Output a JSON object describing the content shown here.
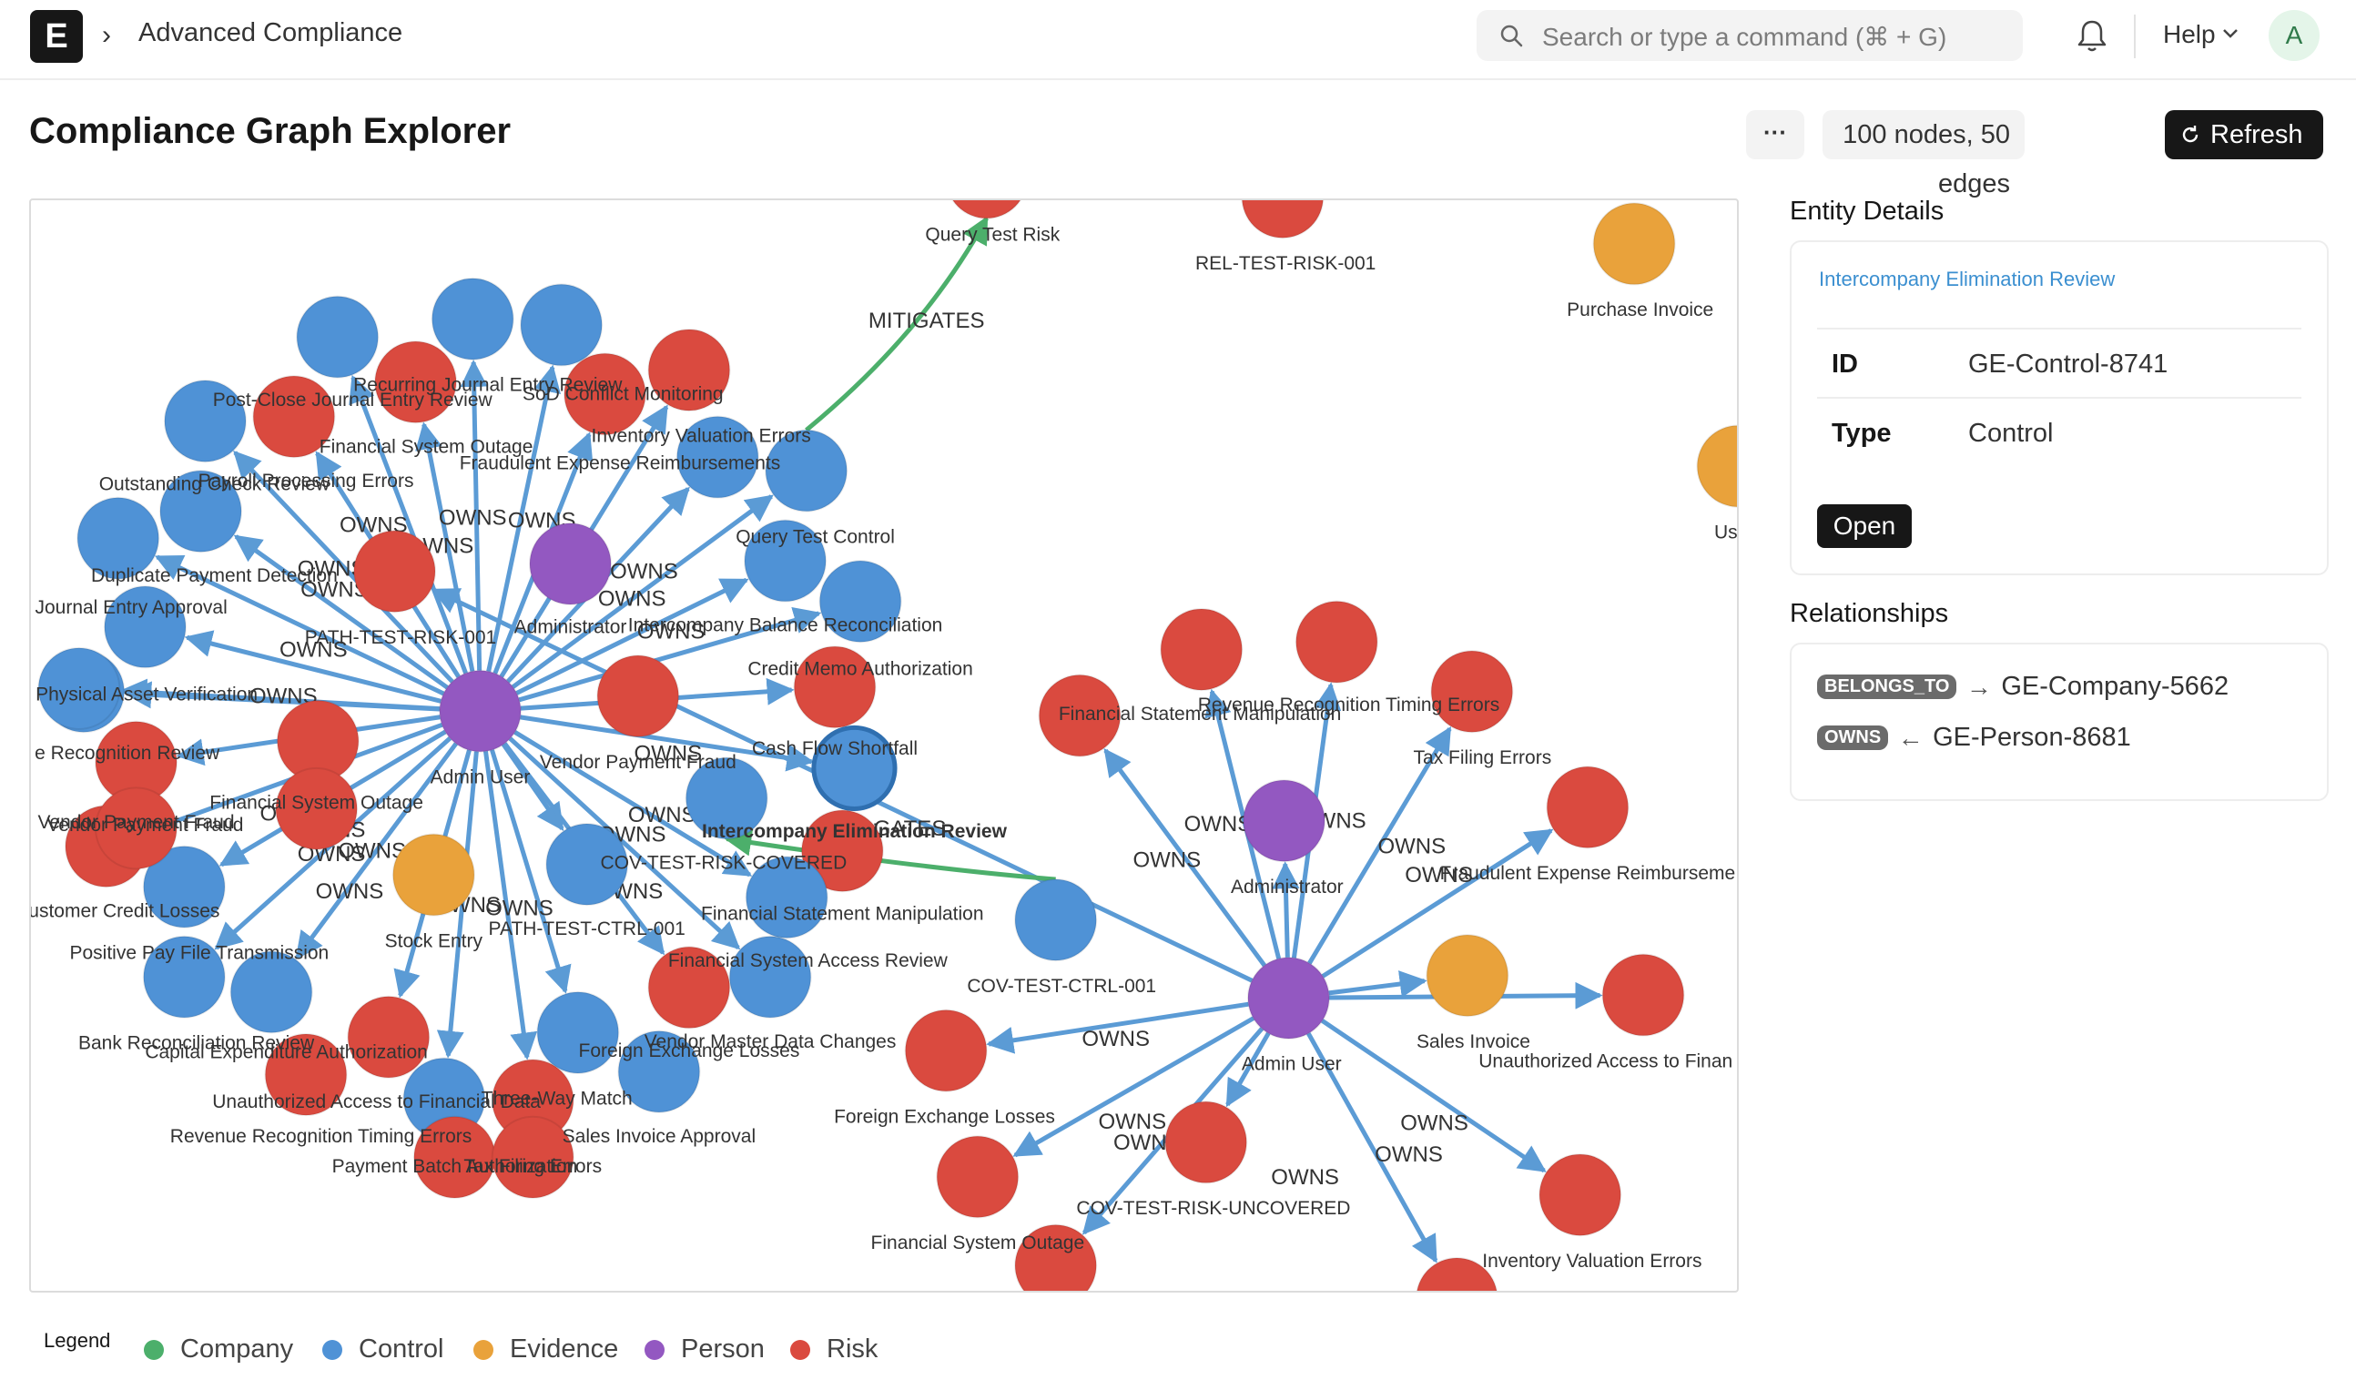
{
  "header": {
    "logo_letter": "E",
    "breadcrumb_separator": "›",
    "breadcrumb": "Advanced Compliance",
    "search_placeholder": "Search or type a command (⌘ + G)",
    "help_label": "Help",
    "avatar_initial": "A"
  },
  "page": {
    "title": "Compliance Graph Explorer",
    "more_label": "···",
    "graph_stats": "100 nodes, 50 edges",
    "refresh_label": "Refresh"
  },
  "colors": {
    "Company": "#4caf6b",
    "Control": "#4f92d6",
    "Evidence": "#e9a23b",
    "Person": "#9358c1",
    "Risk": "#da4a3f",
    "edge": "#5b9bd5",
    "mitigates_edge": "#4caf6b"
  },
  "graph": {
    "nodes": [
      {
        "id": "n1",
        "type": "Person",
        "label": "Admin User"
      },
      {
        "id": "n2",
        "type": "Person",
        "label": "Administrator"
      },
      {
        "id": "n3",
        "type": "Person",
        "label": "Admin User"
      },
      {
        "id": "n4",
        "type": "Person",
        "label": "Administrator"
      },
      {
        "id": "n5",
        "type": "Risk",
        "label": "Query Test Risk"
      },
      {
        "id": "n6",
        "type": "Risk",
        "label": "REL-TEST-RISK-001"
      },
      {
        "id": "n7",
        "type": "Evidence",
        "label": "Purchase Invoice"
      },
      {
        "id": "n8",
        "type": "Evidence",
        "label": "Us"
      },
      {
        "id": "n9",
        "type": "Control",
        "label": "Post-Close Journal Entry Review"
      },
      {
        "id": "n10",
        "type": "Control",
        "label": ""
      },
      {
        "id": "n11",
        "type": "Control",
        "label": ""
      },
      {
        "id": "n12",
        "type": "Control",
        "label": ""
      },
      {
        "id": "n13",
        "type": "Risk",
        "label": "Recurring Journal Entry Review"
      },
      {
        "id": "n14",
        "type": "Risk",
        "label": "SoD Conflict Monitoring"
      },
      {
        "id": "n15",
        "type": "Risk",
        "label": "Financial System Outage"
      },
      {
        "id": "n16",
        "type": "Risk",
        "label": "Inventory Valuation Errors"
      },
      {
        "id": "n17",
        "type": "Control",
        "label": "Fraudulent Expense Reimbursements"
      },
      {
        "id": "n18",
        "type": "Control",
        "label": ""
      },
      {
        "id": "n19",
        "type": "Control",
        "label": "Payroll Processing Errors"
      },
      {
        "id": "n20",
        "type": "Control",
        "label": "Outstanding Check Review"
      },
      {
        "id": "n21",
        "type": "Control",
        "label": "Duplicate Payment Detection"
      },
      {
        "id": "n22",
        "type": "Risk",
        "label": "PATH-TEST-RISK-001"
      },
      {
        "id": "n23",
        "type": "Control",
        "label": "Query Test Control"
      },
      {
        "id": "n24",
        "type": "Control",
        "label": "Intercompany Balance Reconciliation"
      },
      {
        "id": "n25",
        "type": "Control",
        "label": "al Journal Entry Approval"
      },
      {
        "id": "n26",
        "type": "Control",
        "label": "Physical Asset Verification"
      },
      {
        "id": "n27",
        "type": "Risk",
        "label": "Vendor Payment Fraud"
      },
      {
        "id": "n28",
        "type": "Risk",
        "label": "Credit Memo Authorization"
      },
      {
        "id": "n29",
        "type": "Risk",
        "label": "e Recognition Review"
      },
      {
        "id": "n30",
        "type": "Risk",
        "label": ""
      },
      {
        "id": "n31",
        "type": "Control",
        "label": "Cash Flow Shortfall"
      },
      {
        "id": "n32",
        "type": "Risk",
        "label": "Vendor Payment Fraud"
      },
      {
        "id": "n33",
        "type": "Control",
        "label": "Intercompany Elimination Review"
      },
      {
        "id": "n34",
        "type": "Control",
        "label": "ustomer Credit Losses"
      },
      {
        "id": "n35",
        "type": "Evidence",
        "label": "Stock Entry"
      },
      {
        "id": "n36",
        "type": "Control",
        "label": "PATH-TEST-CTRL-001"
      },
      {
        "id": "n37",
        "type": "Risk",
        "label": "COV-TEST-RISK-COVERED"
      },
      {
        "id": "n38",
        "type": "Control",
        "label": "Financial Statement Manipulation"
      },
      {
        "id": "n39",
        "type": "Control",
        "label": "Positive Pay File Transmission"
      },
      {
        "id": "n40",
        "type": "Control",
        "label": "Bank Reconciliation Review"
      },
      {
        "id": "n41",
        "type": "Risk",
        "label": "Capital Expenditure Authorization"
      },
      {
        "id": "n42",
        "type": "Risk",
        "label": "Revenue Recognition Timing Errors"
      },
      {
        "id": "n43",
        "type": "Control",
        "label": "Unauthorized Access to Financial Data"
      },
      {
        "id": "n44",
        "type": "Risk",
        "label": "Three-Way Match"
      },
      {
        "id": "n45",
        "type": "Control",
        "label": "Foreign Exchange Losses"
      },
      {
        "id": "n46",
        "type": "Control",
        "label": "Sales Invoice Approval"
      },
      {
        "id": "n47",
        "type": "Risk",
        "label": "Financial System Access Review"
      },
      {
        "id": "n48",
        "type": "Control",
        "label": "Vendor Master Data Changes"
      },
      {
        "id": "n49",
        "type": "Control",
        "label": "COV-TEST-CTRL-001"
      },
      {
        "id": "n50",
        "type": "Risk",
        "label": "Financial Statement Manipulation"
      },
      {
        "id": "n51",
        "type": "Risk",
        "label": ""
      },
      {
        "id": "n52",
        "type": "Risk",
        "label": "Revenue Recognition Timing Errors"
      },
      {
        "id": "n53",
        "type": "Risk",
        "label": "Tax Filing Errors"
      },
      {
        "id": "n54",
        "type": "Risk",
        "label": "Fraudulent Expense Reimburseme"
      },
      {
        "id": "n55",
        "type": "Evidence",
        "label": "Sales Invoice"
      },
      {
        "id": "n56",
        "type": "Risk",
        "label": "Unauthorized Access to Finan"
      },
      {
        "id": "n57",
        "type": "Risk",
        "label": "Foreign Exchange Losses"
      },
      {
        "id": "n58",
        "type": "Risk",
        "label": "Financial System Outage"
      },
      {
        "id": "n59",
        "type": "Risk",
        "label": "COV-TEST-RISK-UNCOVERED"
      },
      {
        "id": "n60",
        "type": "Risk",
        "label": "Inventory Valuation Errors"
      },
      {
        "id": "n61",
        "type": "Risk",
        "label": ""
      },
      {
        "id": "n62",
        "type": "Risk",
        "label": ""
      },
      {
        "id": "n63",
        "type": "Risk",
        "label": "Payment Batch Authorization"
      },
      {
        "id": "n64",
        "type": "Risk",
        "label": "Tax Filing Errors"
      },
      {
        "id": "n65",
        "type": "Risk",
        "label": "Vendor Payment Fraud"
      },
      {
        "id": "n66",
        "type": "Risk",
        "label": "Financial System Outage"
      }
    ],
    "edge_labels": [
      "MITIGATES",
      "OWNS",
      "OWNS",
      "OWNS",
      "OWNS",
      "OWNS",
      "OWNS",
      "OWNS",
      "OWNS",
      "OWNS",
      "OWNS",
      "OWNS",
      "OWNS",
      "OWNS",
      "OWNS",
      "OWNS",
      "OWNS",
      "OWNS",
      "OWNS",
      "OWNS",
      "OWNS",
      "OWNS",
      "OWNS",
      "OWNS",
      "OWNS",
      "OWNS",
      "OWNS",
      "OWNS",
      "OWNS",
      "OWNS",
      "OWNS",
      "OWNS",
      "OWNS",
      "OWNS",
      "GATES"
    ]
  },
  "details": {
    "heading": "Entity Details",
    "entity_name": "Intercompany Elimination Review",
    "fields": [
      {
        "key": "ID",
        "value": "GE-Control-8741"
      },
      {
        "key": "Type",
        "value": "Control"
      }
    ],
    "open_label": "Open"
  },
  "relationships": {
    "heading": "Relationships",
    "items": [
      {
        "badge": "BELONGS_TO",
        "direction": "→",
        "target": "GE-Company-5662"
      },
      {
        "badge": "OWNS",
        "direction": "←",
        "target": "GE-Person-8681"
      }
    ]
  },
  "legend": {
    "title": "Legend",
    "items": [
      {
        "label": "Company",
        "color": "#4caf6b"
      },
      {
        "label": "Control",
        "color": "#4f92d6"
      },
      {
        "label": "Evidence",
        "color": "#e9a23b"
      },
      {
        "label": "Person",
        "color": "#9358c1"
      },
      {
        "label": "Risk",
        "color": "#da4a3f"
      }
    ]
  }
}
